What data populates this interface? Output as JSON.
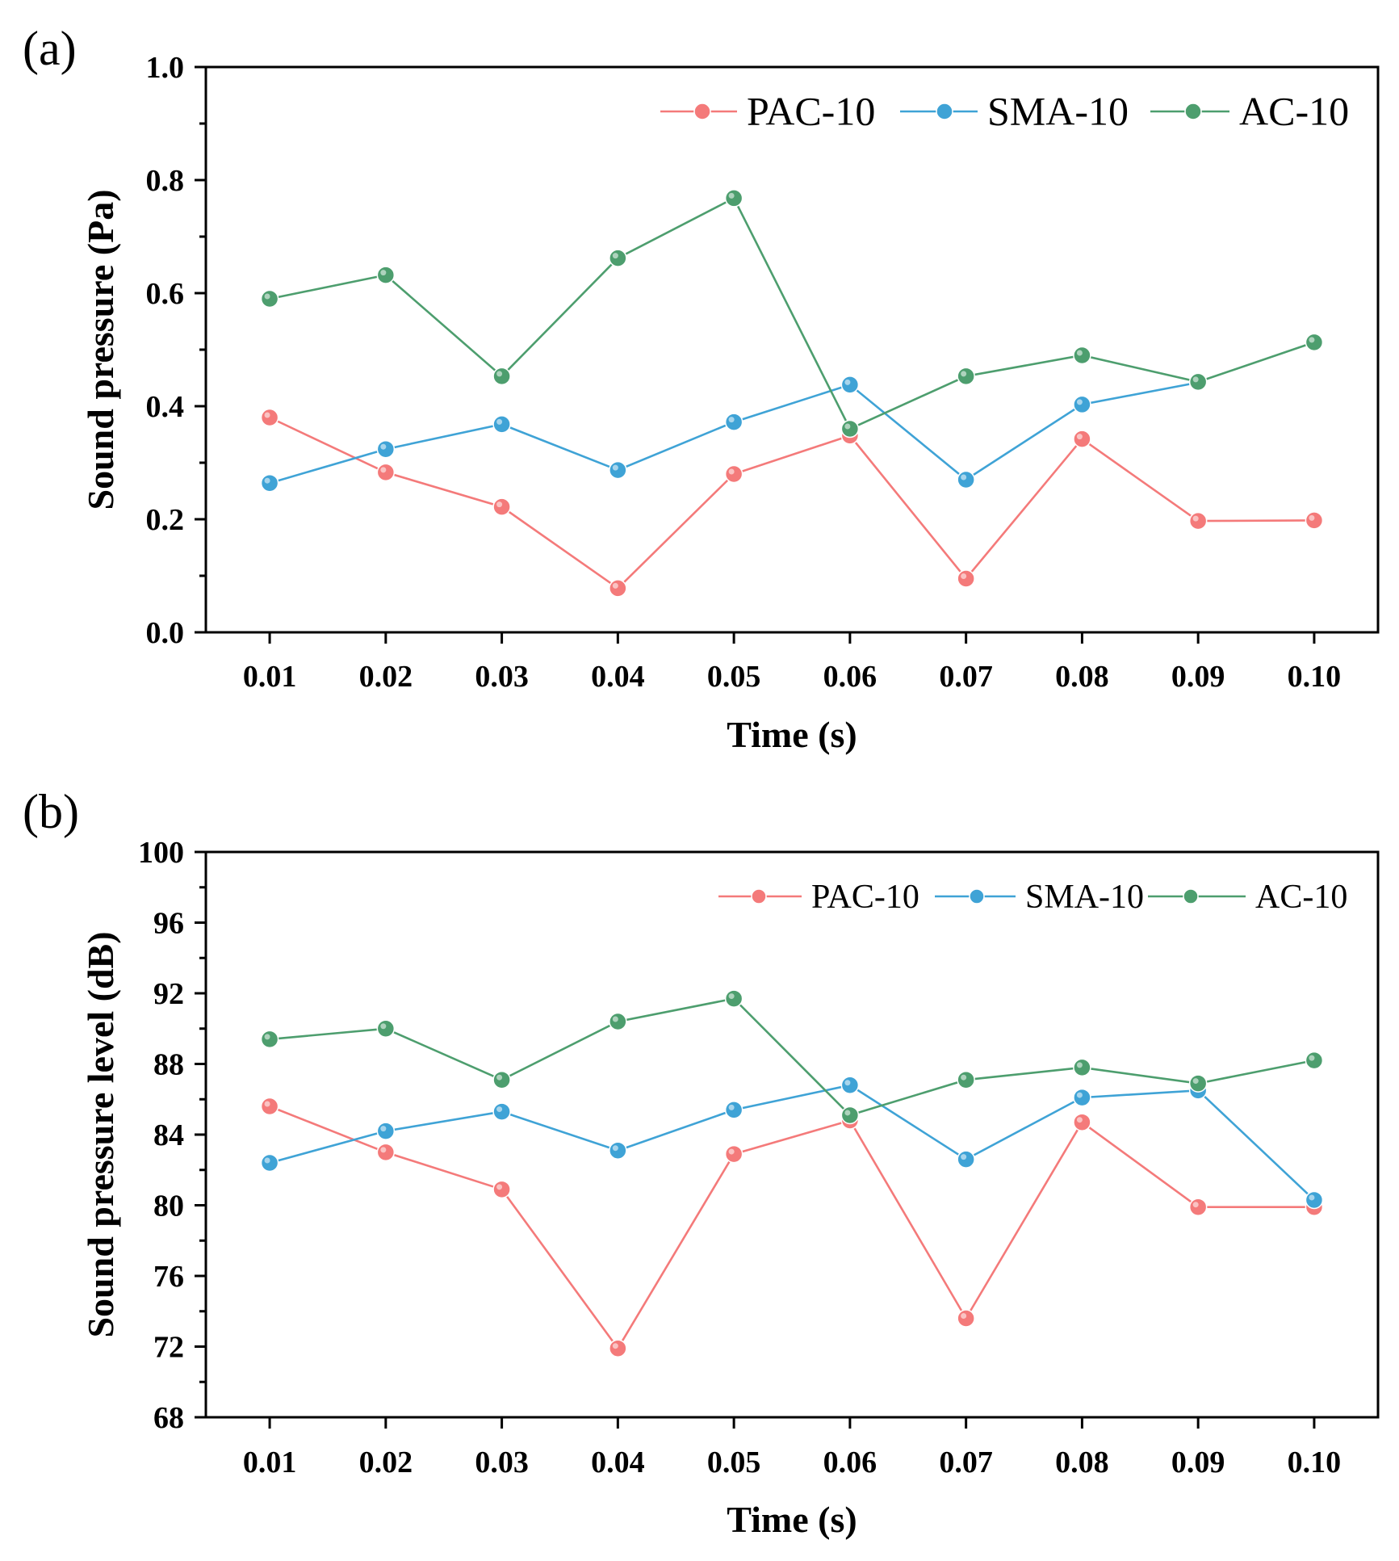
{
  "chart_data": [
    {
      "type": "line",
      "panel_label": "(a)",
      "x": [
        0.01,
        0.02,
        0.03,
        0.04,
        0.05,
        0.06,
        0.07,
        0.08,
        0.09,
        0.1
      ],
      "x_tick_labels": [
        "0.01",
        "0.02",
        "0.03",
        "0.04",
        "0.05",
        "0.06",
        "0.07",
        "0.08",
        "0.09",
        "0.10"
      ],
      "xlabel": "Time (s)",
      "ylabel": "Sound pressure (Pa)",
      "ylim": [
        0.0,
        1.0
      ],
      "y_ticks": [
        0.0,
        0.2,
        0.4,
        0.6,
        0.8,
        1.0
      ],
      "y_tick_labels": [
        "0.0",
        "0.2",
        "0.4",
        "0.6",
        "0.8",
        "1.0"
      ],
      "legend_position": "top-right",
      "series": [
        {
          "name": "PAC-10",
          "color": "#f47a7a",
          "values": [
            0.38,
            0.283,
            0.222,
            0.078,
            0.28,
            0.348,
            0.095,
            0.342,
            0.197,
            0.198
          ]
        },
        {
          "name": "SMA-10",
          "color": "#3fa3d6",
          "values": [
            0.264,
            0.324,
            0.368,
            0.287,
            0.372,
            0.438,
            0.27,
            0.403,
            0.442,
            null
          ]
        },
        {
          "name": "AC-10",
          "color": "#4d9e6e",
          "values": [
            0.59,
            0.632,
            0.453,
            0.662,
            0.768,
            0.36,
            0.453,
            0.49,
            0.443,
            0.513
          ]
        }
      ]
    },
    {
      "type": "line",
      "panel_label": "(b)",
      "x": [
        0.01,
        0.02,
        0.03,
        0.04,
        0.05,
        0.06,
        0.07,
        0.08,
        0.09,
        0.1
      ],
      "x_tick_labels": [
        "0.01",
        "0.02",
        "0.03",
        "0.04",
        "0.05",
        "0.06",
        "0.07",
        "0.08",
        "0.09",
        "0.10"
      ],
      "xlabel": "Time (s)",
      "ylabel": "Sound pressure level (dB)",
      "ylim": [
        68,
        100
      ],
      "y_ticks": [
        68,
        72,
        76,
        80,
        84,
        88,
        92,
        96,
        100
      ],
      "y_tick_labels": [
        "68",
        "72",
        "76",
        "80",
        "84",
        "88",
        "92",
        "96",
        "100"
      ],
      "legend_position": "top-right",
      "series": [
        {
          "name": "PAC-10",
          "color": "#f47a7a",
          "values": [
            85.6,
            83.0,
            80.9,
            71.9,
            82.9,
            84.8,
            73.6,
            84.7,
            79.9,
            79.9
          ]
        },
        {
          "name": "SMA-10",
          "color": "#3fa3d6",
          "values": [
            82.4,
            84.2,
            85.3,
            83.1,
            85.4,
            86.8,
            82.6,
            86.1,
            86.5,
            80.3
          ]
        },
        {
          "name": "AC-10",
          "color": "#4d9e6e",
          "values": [
            89.4,
            90.0,
            87.1,
            90.4,
            91.7,
            85.1,
            87.1,
            87.8,
            86.9,
            88.2
          ]
        }
      ]
    }
  ]
}
